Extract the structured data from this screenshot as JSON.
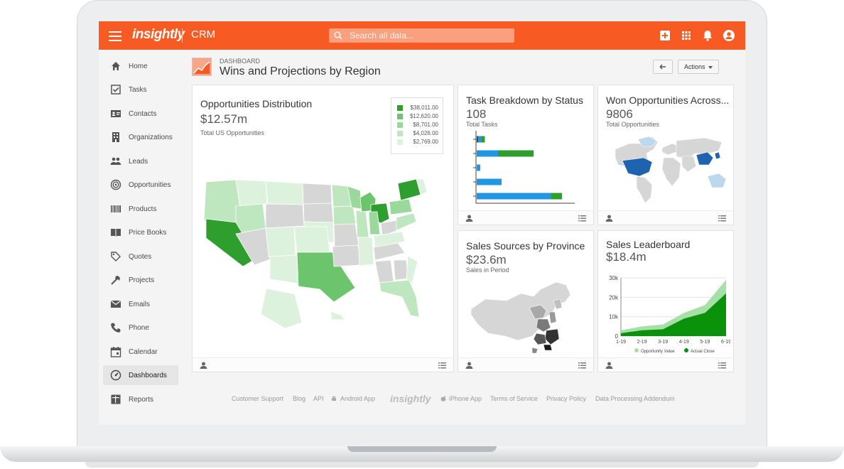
{
  "topbar": {
    "logo": "insightly",
    "module": "CRM",
    "search_placeholder": "Search all data..."
  },
  "sidebar": {
    "items": [
      {
        "label": "Home",
        "icon": "home-icon"
      },
      {
        "label": "Tasks",
        "icon": "tasks-icon"
      },
      {
        "label": "Contacts",
        "icon": "contacts-icon"
      },
      {
        "label": "Organizations",
        "icon": "organizations-icon"
      },
      {
        "label": "Leads",
        "icon": "leads-icon"
      },
      {
        "label": "Opportunities",
        "icon": "opportunities-icon"
      },
      {
        "label": "Products",
        "icon": "products-icon"
      },
      {
        "label": "Price Books",
        "icon": "price-books-icon"
      },
      {
        "label": "Quotes",
        "icon": "quotes-icon"
      },
      {
        "label": "Projects",
        "icon": "projects-icon"
      },
      {
        "label": "Emails",
        "icon": "emails-icon"
      },
      {
        "label": "Phone",
        "icon": "phone-icon"
      },
      {
        "label": "Calendar",
        "icon": "calendar-icon"
      },
      {
        "label": "Dashboards",
        "icon": "dashboards-icon",
        "active": true
      },
      {
        "label": "Reports",
        "icon": "reports-icon"
      }
    ]
  },
  "dashboard": {
    "kicker": "DASHBOARD",
    "title": "Wins and Projections by Region",
    "actions_label": "Actions"
  },
  "cards": {
    "opportunities": {
      "title": "Opportunities Distribution",
      "value": "$12.57m",
      "subtitle": "Total US Opportunities",
      "legend": [
        {
          "label": "$38,011.00",
          "color": "#2e9e2e"
        },
        {
          "label": "$12,620.00",
          "color": "#6cc46c"
        },
        {
          "label": "$8,701.00",
          "color": "#9bd89b"
        },
        {
          "label": "$4,026.00",
          "color": "#bfe7bf"
        },
        {
          "label": "$2,769.00",
          "color": "#dcf2dc"
        }
      ]
    },
    "tasks": {
      "title": "Task Breakdown by Status",
      "value": "108",
      "subtitle": "Total Tasks"
    },
    "won": {
      "title": "Won Opportunities Across...",
      "value": "9806",
      "subtitle": "Total Opportunities"
    },
    "sales_sources": {
      "title": "Sales Sources by Province",
      "value": "$23.6m",
      "subtitle": "Sales in Period"
    },
    "leaderboard": {
      "title": "Sales Leaderboard",
      "value": "$18.4m"
    }
  },
  "chart_data": [
    {
      "type": "bar",
      "title": "Task Breakdown by Status",
      "orientation": "horizontal",
      "stacked": true,
      "series": [
        {
          "name": "",
          "color": "#2196e3",
          "values": [
            1,
            6,
            1,
            7,
            21
          ]
        },
        {
          "name": "",
          "color": "#2e9e2e",
          "values": [
            1,
            10,
            0,
            0,
            3
          ]
        },
        {
          "name": "",
          "color": "#333333",
          "values": [
            0.3,
            0,
            0,
            0,
            0
          ]
        }
      ]
    },
    {
      "type": "area",
      "title": "Sales Leaderboard",
      "x": [
        "1-19",
        "2-19",
        "3-19",
        "4-19",
        "5-19",
        "6-19"
      ],
      "ylim": [
        0,
        30000
      ],
      "yticks": [
        "0",
        "10k",
        "20k",
        "30k"
      ],
      "series": [
        {
          "name": "Opportunity Value",
          "color": "#a6e0a6",
          "values": [
            3000,
            5000,
            6000,
            12000,
            16000,
            29000
          ]
        },
        {
          "name": "Actual Close",
          "color": "#0a930a",
          "values": [
            1500,
            3000,
            3500,
            9000,
            12000,
            22000
          ]
        }
      ]
    }
  ],
  "footer": {
    "links": [
      "Customer Support",
      "Blog",
      "API",
      "Android App",
      "iPhone App",
      "Terms of Service",
      "Privacy Policy",
      "Data Processing Addendum"
    ],
    "logo": "insightly"
  }
}
